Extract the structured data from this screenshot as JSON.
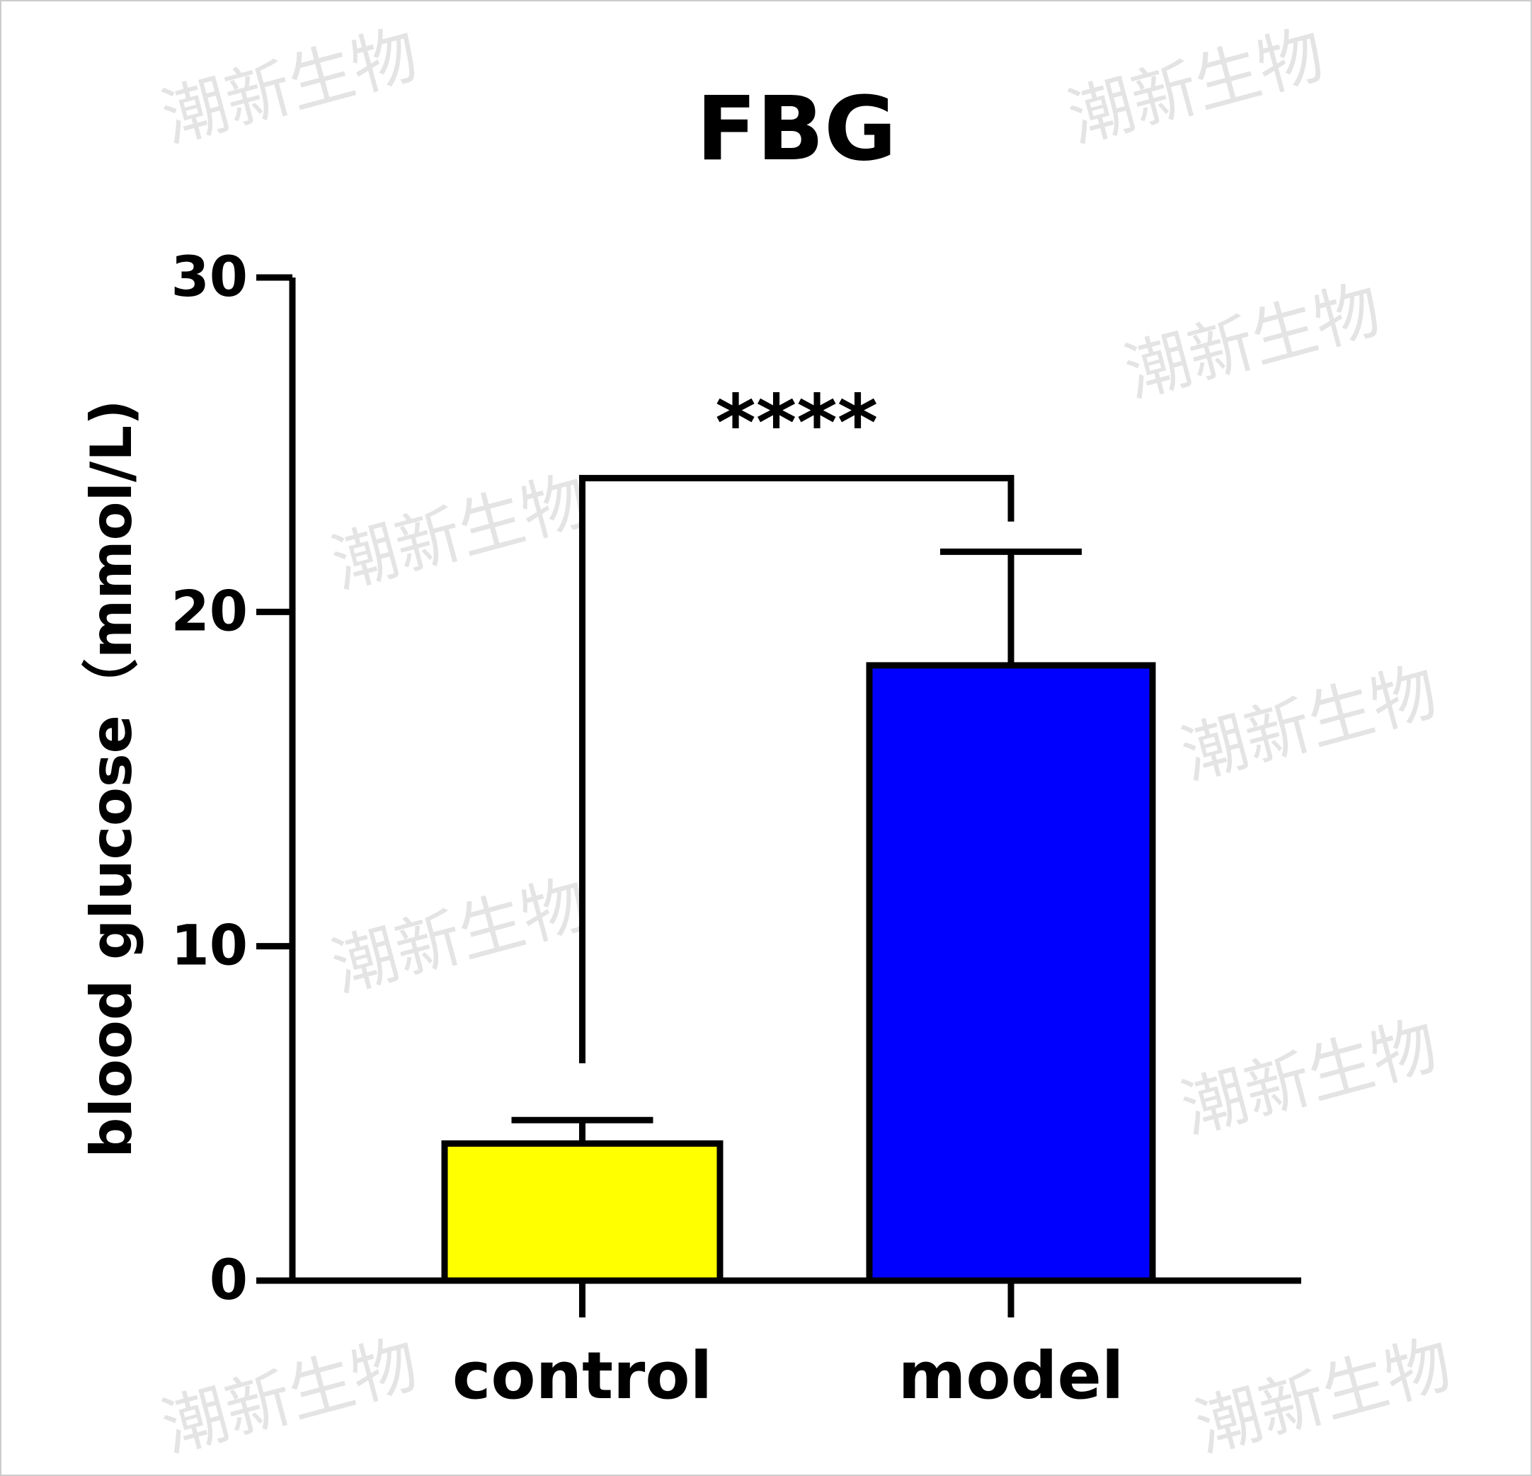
{
  "watermark": "潮新生物",
  "chart_data": {
    "type": "bar",
    "title": "FBG",
    "ylabel": "blood glucose（mmol/L)",
    "xlabel": "",
    "categories": [
      "control",
      "model"
    ],
    "values": [
      4.1,
      18.4
    ],
    "error_upper": [
      4.8,
      21.8
    ],
    "colors": [
      "#ffff00",
      "#0000ff"
    ],
    "ylim": [
      0,
      30
    ],
    "yticks": [
      "0",
      "10",
      "20",
      "30"
    ],
    "grid": false,
    "significance": {
      "label": "****",
      "from": "control",
      "to": "model",
      "level": 24.0
    }
  }
}
